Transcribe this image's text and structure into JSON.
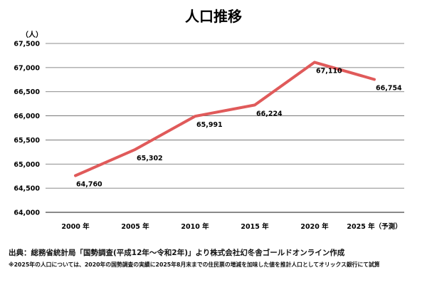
{
  "chart_data": {
    "type": "line",
    "title": "人口推移",
    "ylabel": "（人）",
    "categories": [
      "2000 年",
      "2005 年",
      "2010 年",
      "2015 年",
      "2020 年",
      "2025 年（予測）"
    ],
    "series": [
      {
        "values": [
          64760,
          65302,
          65991,
          66224,
          67110,
          66754
        ],
        "color": "#e05a5a"
      }
    ],
    "data_labels": [
      "64,760",
      "65,302",
      "65,991",
      "66,224",
      "67,110",
      "66,754"
    ],
    "y_ticks": [
      "64,000",
      "64,500",
      "65,000",
      "65,500",
      "66,000",
      "66,500",
      "67,000",
      "67,500"
    ],
    "ylim": [
      64000,
      67500
    ],
    "grid": true,
    "legend": "none"
  },
  "footer": {
    "source": "出典：総務省統計局「国勢調査(平成12年～令和2年)」より株式会社幻冬舎ゴールドオンライン作成",
    "note": "※2025年の人口については、2020年の国勢調査の実績に2025年8月末までの住民票の増減を加味した値を推計人口としてオリックス銀行にて試算"
  }
}
